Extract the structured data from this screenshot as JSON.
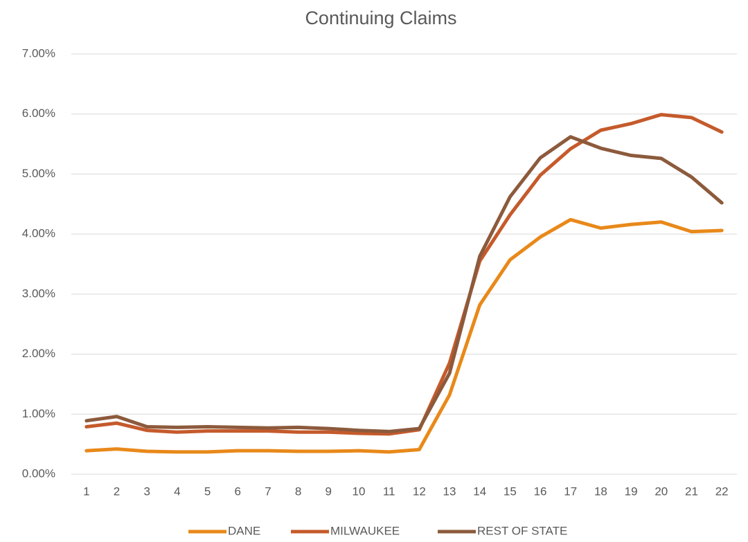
{
  "chart_data": {
    "type": "line",
    "title": "Continuing Claims",
    "categories": [
      "1",
      "2",
      "3",
      "4",
      "5",
      "6",
      "7",
      "8",
      "9",
      "10",
      "11",
      "12",
      "13",
      "14",
      "15",
      "16",
      "17",
      "18",
      "19",
      "20",
      "21",
      "22"
    ],
    "series": [
      {
        "name": "DANE",
        "color": "#e8891a",
        "values": [
          0.39,
          0.42,
          0.38,
          0.37,
          0.37,
          0.39,
          0.39,
          0.38,
          0.38,
          0.39,
          0.37,
          0.41,
          1.32,
          2.82,
          3.57,
          3.95,
          4.24,
          4.1,
          4.16,
          4.2,
          4.04,
          4.06
        ]
      },
      {
        "name": "MILWAUKEE",
        "color": "#c55a2b",
        "values": [
          0.79,
          0.85,
          0.73,
          0.7,
          0.72,
          0.72,
          0.72,
          0.7,
          0.7,
          0.68,
          0.67,
          0.74,
          1.85,
          3.55,
          4.32,
          4.98,
          5.42,
          5.73,
          5.84,
          5.99,
          5.94,
          5.7
        ]
      },
      {
        "name": "REST OF STATE",
        "color": "#8c5a3c",
        "values": [
          0.89,
          0.96,
          0.79,
          0.78,
          0.79,
          0.78,
          0.77,
          0.78,
          0.76,
          0.73,
          0.71,
          0.76,
          1.68,
          3.63,
          4.62,
          5.27,
          5.62,
          5.43,
          5.31,
          5.26,
          4.95,
          4.52
        ]
      }
    ],
    "ylim": [
      0,
      7
    ],
    "yticks": [
      {
        "value": 0,
        "label": "0.00%"
      },
      {
        "value": 1,
        "label": "1.00%"
      },
      {
        "value": 2,
        "label": "2.00%"
      },
      {
        "value": 3,
        "label": "3.00%"
      },
      {
        "value": 4,
        "label": "4.00%"
      },
      {
        "value": 5,
        "label": "5.00%"
      },
      {
        "value": 6,
        "label": "6.00%"
      },
      {
        "value": 7,
        "label": "7.00%"
      }
    ],
    "grid": true,
    "legend": "bottom"
  }
}
